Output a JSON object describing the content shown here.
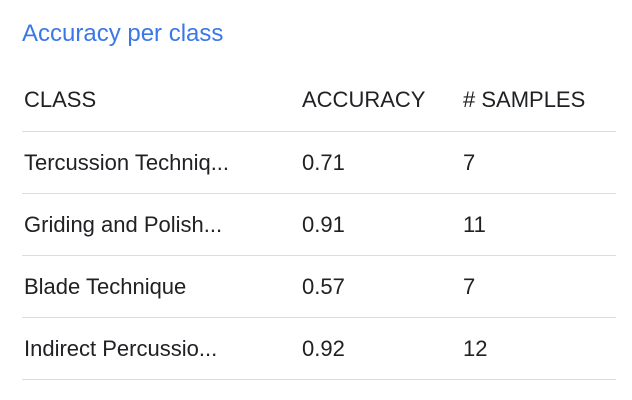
{
  "title": "Accuracy per class",
  "table": {
    "headers": {
      "class": "CLASS",
      "accuracy": "ACCURACY",
      "samples": "# SAMPLES"
    },
    "rows": [
      {
        "class": "Tercussion Techniq...",
        "accuracy": "0.71",
        "samples": "7"
      },
      {
        "class": "Griding and Polish...",
        "accuracy": "0.91",
        "samples": "11"
      },
      {
        "class": "Blade Technique",
        "accuracy": "0.57",
        "samples": "7"
      },
      {
        "class": "Indirect Percussio...",
        "accuracy": "0.92",
        "samples": "12"
      }
    ]
  },
  "colors": {
    "title": "#3b78e7",
    "text": "#202124",
    "divider": "#dcdcdc"
  }
}
